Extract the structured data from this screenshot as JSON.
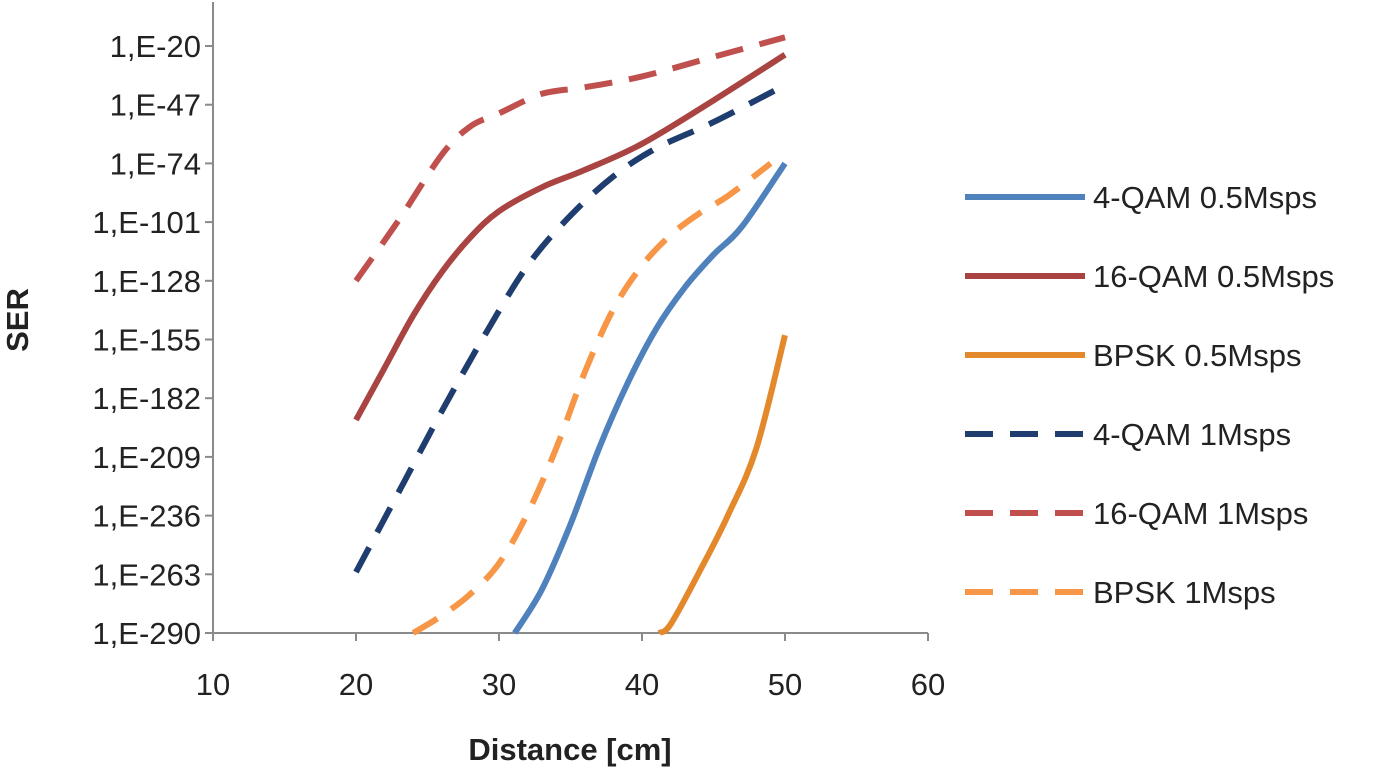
{
  "chart_data": {
    "type": "line",
    "title": "",
    "xlabel": "Distance [cm]",
    "ylabel": "SER",
    "xlim": [
      10,
      60
    ],
    "ylim": [
      -290,
      -20
    ],
    "x_ticks": [
      10,
      20,
      30,
      40,
      50,
      60
    ],
    "y_ticks": [
      -20,
      -47,
      -74,
      -101,
      -128,
      -155,
      -182,
      -209,
      -236,
      -263,
      -290
    ],
    "y_tick_labels": [
      "1,E-20",
      "1,E-47",
      "1,E-74",
      "1,E-101",
      "1,E-128",
      "1,E-155",
      "1,E-182",
      "1,E-209",
      "1,E-236",
      "1,E-263",
      "1,E-290"
    ],
    "y_scale": "log10 (exponent shown)",
    "grid": false,
    "legend_position": "right",
    "series": [
      {
        "name": "4-QAM 0.5Msps",
        "color": "#4f81bd",
        "dash": "solid",
        "points": [
          [
            31.1,
            -290
          ],
          [
            33,
            -270
          ],
          [
            35,
            -240
          ],
          [
            37,
            -205
          ],
          [
            39,
            -175
          ],
          [
            41,
            -150
          ],
          [
            43,
            -131
          ],
          [
            45,
            -116
          ],
          [
            47,
            -103
          ],
          [
            50,
            -74
          ]
        ]
      },
      {
        "name": "16-QAM 0.5Msps",
        "color": "#a94442",
        "dash": "solid",
        "points": [
          [
            20,
            -192
          ],
          [
            22,
            -168
          ],
          [
            24,
            -144
          ],
          [
            26,
            -124
          ],
          [
            28,
            -108
          ],
          [
            30,
            -96
          ],
          [
            33,
            -85
          ],
          [
            36,
            -77
          ],
          [
            40,
            -65
          ],
          [
            45,
            -45
          ],
          [
            50,
            -24
          ]
        ]
      },
      {
        "name": "BPSK 0.5Msps",
        "color": "#e4882c",
        "dash": "solid",
        "points": [
          [
            41.2,
            -290
          ],
          [
            42,
            -286
          ],
          [
            44,
            -262
          ],
          [
            46,
            -236
          ],
          [
            48,
            -205
          ],
          [
            50,
            -153
          ]
        ]
      },
      {
        "name": "4-QAM 1Msps",
        "color": "#1f3d6e",
        "dash": "dashed",
        "points": [
          [
            20,
            -262
          ],
          [
            23,
            -225
          ],
          [
            26,
            -188
          ],
          [
            29,
            -153
          ],
          [
            32,
            -121
          ],
          [
            35,
            -98
          ],
          [
            38,
            -80
          ],
          [
            41,
            -67
          ],
          [
            45,
            -55
          ],
          [
            50,
            -38
          ]
        ]
      },
      {
        "name": "16-QAM 1Msps",
        "color": "#c0504d",
        "dash": "dashed",
        "points": [
          [
            20,
            -128
          ],
          [
            23,
            -100
          ],
          [
            26,
            -70
          ],
          [
            28,
            -57
          ],
          [
            30,
            -51
          ],
          [
            33,
            -42
          ],
          [
            36,
            -39
          ],
          [
            40,
            -34
          ],
          [
            45,
            -25
          ],
          [
            50,
            -16
          ]
        ]
      },
      {
        "name": "BPSK 1Msps",
        "color": "#f79646",
        "dash": "dashed",
        "points": [
          [
            24,
            -290
          ],
          [
            26,
            -282
          ],
          [
            28,
            -272
          ],
          [
            30,
            -258
          ],
          [
            32,
            -235
          ],
          [
            34,
            -205
          ],
          [
            36,
            -170
          ],
          [
            38,
            -141
          ],
          [
            40,
            -121
          ],
          [
            42,
            -107
          ],
          [
            44,
            -97
          ],
          [
            46,
            -89
          ],
          [
            49,
            -74
          ]
        ]
      }
    ]
  }
}
